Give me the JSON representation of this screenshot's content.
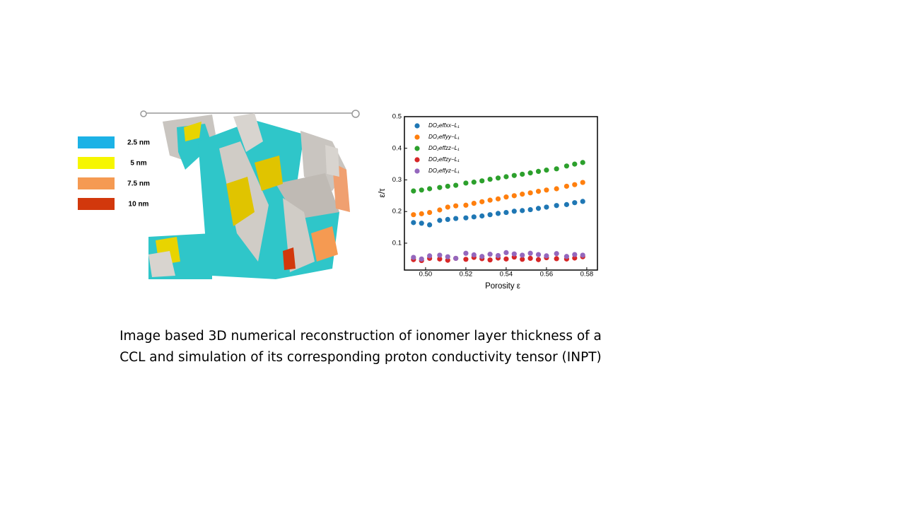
{
  "image_legend": [
    {
      "label": "2.5 nm",
      "color": "#1cb2e6"
    },
    {
      "label": "5 nm",
      "color": "#f6f600"
    },
    {
      "label": "7.5 nm",
      "color": "#f59a52"
    },
    {
      "label": "10 nm",
      "color": "#d2380c"
    }
  ],
  "caption": [
    "Image based 3D numerical reconstruction of ionomer layer thickness of a",
    "CCL and simulation of its corresponding proton conductivity tensor (INPT)"
  ],
  "chart_data": {
    "type": "scatter",
    "xlabel": "Porosity ε",
    "ylabel": "ε/τ",
    "x": [
      0.494,
      0.498,
      0.502,
      0.507,
      0.511,
      0.515,
      0.52,
      0.524,
      0.528,
      0.532,
      0.536,
      0.54,
      0.544,
      0.548,
      0.552,
      0.556,
      0.56,
      0.565,
      0.57,
      0.574,
      0.578
    ],
    "series": [
      {
        "name": "DO₂effxx−L₁",
        "color": "#1f77b4",
        "values": [
          0.165,
          0.163,
          0.158,
          0.172,
          0.175,
          0.178,
          0.18,
          0.183,
          0.186,
          0.19,
          0.194,
          0.197,
          0.201,
          0.203,
          0.206,
          0.21,
          0.214,
          0.219,
          0.222,
          0.228,
          0.232
        ]
      },
      {
        "name": "DO₂effyy−L₁",
        "color": "#ff7f0e",
        "values": [
          0.19,
          0.193,
          0.197,
          0.205,
          0.214,
          0.218,
          0.22,
          0.226,
          0.231,
          0.236,
          0.24,
          0.246,
          0.25,
          0.255,
          0.259,
          0.264,
          0.268,
          0.272,
          0.28,
          0.285,
          0.292
        ]
      },
      {
        "name": "DO₂effzz−L₁",
        "color": "#2ca02c",
        "values": [
          0.265,
          0.268,
          0.272,
          0.276,
          0.28,
          0.283,
          0.29,
          0.293,
          0.297,
          0.302,
          0.306,
          0.31,
          0.314,
          0.318,
          0.322,
          0.327,
          0.331,
          0.335,
          0.344,
          0.35,
          0.355
        ]
      },
      {
        "name": "DO₂effzy−L₁",
        "color": "#d62728",
        "values": [
          0.048,
          0.045,
          0.052,
          0.05,
          0.046,
          0.052,
          0.049,
          0.055,
          0.051,
          0.047,
          0.053,
          0.05,
          0.056,
          0.049,
          0.052,
          0.048,
          0.054,
          0.051,
          0.05,
          0.053,
          0.057
        ]
      },
      {
        "name": "DO₂effyz−L₁",
        "color": "#9467bd",
        "values": [
          0.055,
          0.05,
          0.06,
          0.062,
          0.057,
          0.052,
          0.068,
          0.063,
          0.058,
          0.065,
          0.061,
          0.07,
          0.066,
          0.062,
          0.068,
          0.064,
          0.06,
          0.067,
          0.058,
          0.064,
          0.062
        ]
      }
    ],
    "xlim": [
      0.4895,
      0.5853
    ],
    "ylim": [
      0.015,
      0.5
    ],
    "xticks": [
      {
        "value": 0.5,
        "label": "0.50"
      },
      0.52,
      0.54,
      0.56,
      0.58
    ],
    "yticks": [
      0.1,
      0.2,
      0.3,
      0.4,
      0.5
    ],
    "legend": "upper left"
  }
}
